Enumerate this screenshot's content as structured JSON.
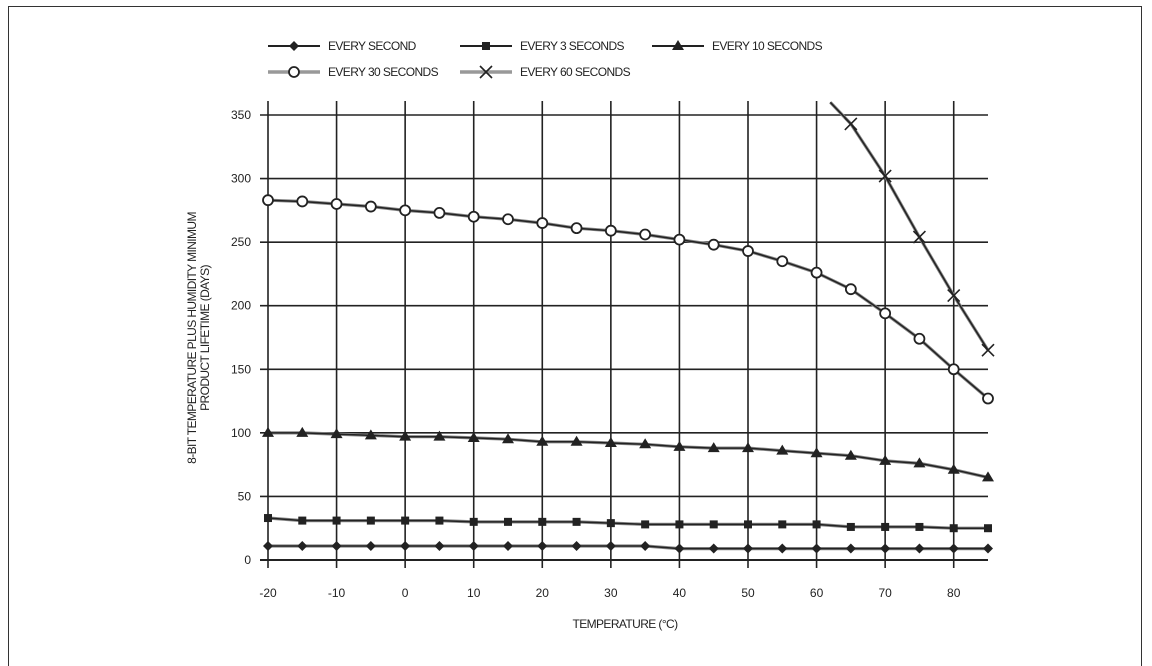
{
  "chart_data": {
    "type": "line",
    "xlabel": "TEMPERATURE (°C)",
    "ylabel_line1": "8-BIT TEMPERATURE PLUS HUMIDITY MINIMUM",
    "ylabel_line2": "PRODUCT LIFETIME (DAYS)",
    "xlim": [
      -20,
      85
    ],
    "ylim": [
      0,
      350
    ],
    "xticks": [
      -20,
      -10,
      0,
      10,
      20,
      30,
      40,
      50,
      60,
      70,
      80
    ],
    "yticks": [
      0,
      50,
      100,
      150,
      200,
      250,
      300,
      350
    ],
    "grid": true,
    "legend_position": "top",
    "x": [
      -20,
      -15,
      -10,
      -5,
      0,
      5,
      10,
      15,
      20,
      25,
      30,
      35,
      40,
      45,
      50,
      55,
      60,
      65,
      70,
      75,
      80,
      85
    ],
    "series": [
      {
        "name": "EVERY SECOND",
        "marker": "diamond",
        "color": "#222222",
        "values": [
          11,
          11,
          11,
          11,
          11,
          11,
          11,
          11,
          11,
          11,
          11,
          11,
          9,
          9,
          9,
          9,
          9,
          9,
          9,
          9,
          9,
          9
        ]
      },
      {
        "name": "EVERY 3 SECONDS",
        "marker": "square",
        "color": "#222222",
        "values": [
          33,
          31,
          31,
          31,
          31,
          31,
          30,
          30,
          30,
          30,
          29,
          28,
          28,
          28,
          28,
          28,
          28,
          26,
          26,
          26,
          25,
          25
        ]
      },
      {
        "name": "EVERY 10 SECONDS",
        "marker": "triangle",
        "color": "#222222",
        "values": [
          100,
          100,
          99,
          98,
          97,
          97,
          96,
          95,
          93,
          93,
          92,
          91,
          89,
          88,
          88,
          86,
          84,
          82,
          78,
          76,
          71,
          65
        ]
      },
      {
        "name": "EVERY 30 SECONDS",
        "marker": "circle",
        "color": "#222222",
        "values": [
          283,
          282,
          280,
          278,
          275,
          273,
          270,
          268,
          265,
          261,
          259,
          256,
          252,
          248,
          243,
          235,
          226,
          213,
          194,
          174,
          150,
          127
        ]
      },
      {
        "name": "EVERY 60 SECONDS",
        "marker": "x",
        "color": "#222222",
        "points": [
          [
            62,
            360
          ],
          [
            65,
            343
          ],
          [
            70,
            302
          ],
          [
            75,
            254
          ],
          [
            80,
            208
          ],
          [
            85,
            165
          ]
        ]
      }
    ]
  }
}
